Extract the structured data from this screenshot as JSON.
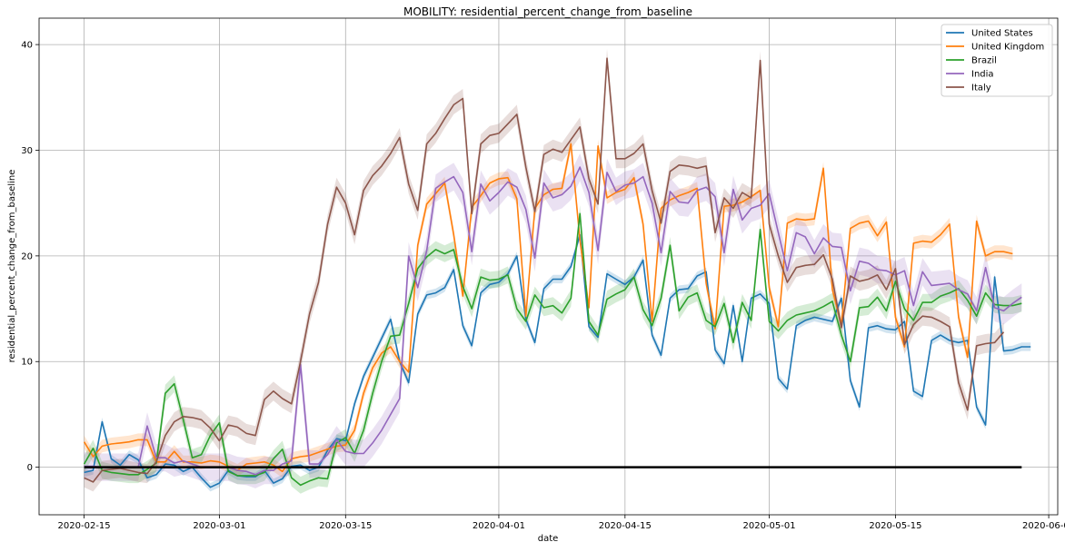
{
  "chart_data": {
    "type": "line",
    "title": "MOBILITY: residential_percent_change_from_baseline",
    "xlabel": "date",
    "ylabel": "residential_percent_change_from_baseline",
    "xlim": [
      "2020-02-10",
      "2020-06-02"
    ],
    "ylim": [
      -4.5,
      42.5
    ],
    "x_ticks": [
      "2020-02-15",
      "2020-03-01",
      "2020-03-15",
      "2020-04-01",
      "2020-04-15",
      "2020-05-01",
      "2020-05-15",
      "2020-06-01"
    ],
    "y_ticks": [
      0,
      10,
      20,
      30,
      40
    ],
    "grid": true,
    "legend_position": "top-right",
    "x_start": "2020-02-15",
    "x_end": "2020-05-29",
    "confidence_band": true,
    "baseline": {
      "value": 0,
      "color": "#000000"
    },
    "series": [
      {
        "name": "United States",
        "color": "#1f77b4",
        "band": 0.4,
        "values": [
          -0.5,
          -0.3,
          4.3,
          0.8,
          0.2,
          1.2,
          0.7,
          -1.0,
          -0.7,
          0.3,
          0.2,
          -0.4,
          0,
          -1.0,
          -1.9,
          -1.5,
          -0.3,
          -0.8,
          -0.9,
          -0.9,
          -0.3,
          -1.5,
          -1.1,
          0.1,
          0.2,
          -0.3,
          0,
          1.6,
          2.7,
          2.5,
          6.0,
          8.6,
          10.4,
          12.2,
          14.0,
          10.0,
          8.0,
          14.5,
          16.3,
          16.5,
          17.0,
          18.7,
          13.4,
          11.5,
          16.5,
          17.3,
          17.5,
          18.3,
          20.0,
          14.0,
          11.8,
          16.9,
          17.8,
          17.8,
          19.0,
          22.0,
          13.3,
          12.3,
          18.3,
          17.8,
          17.3,
          18.0,
          19.6,
          12.5,
          10.6,
          16.0,
          16.8,
          16.9,
          18.1,
          18.5,
          11.1,
          9.8,
          15.3,
          10.0,
          16.0,
          16.4,
          15.5,
          8.4,
          7.4,
          13.4,
          13.9,
          14.2,
          14.0,
          13.8,
          16.0,
          8.2,
          5.7,
          13.2,
          13.4,
          13.1,
          13.0,
          13.8,
          7.2,
          6.7,
          12.0,
          12.5,
          12.0,
          11.8,
          12.0,
          5.7,
          4.0,
          18.0,
          11.0,
          11.1,
          11.4,
          11.4
        ]
      },
      {
        "name": "United Kingdom",
        "color": "#ff7f0e",
        "band": 0.6,
        "values": [
          2.4,
          1.0,
          2.0,
          2.2,
          2.3,
          2.4,
          2.6,
          2.6,
          0.5,
          0.5,
          1.5,
          0.5,
          0.5,
          0.4,
          0.6,
          0.5,
          0.1,
          -0.3,
          0.3,
          0.4,
          0.5,
          0.2,
          -0.4,
          0.8,
          1.0,
          1.1,
          1.4,
          1.7,
          2.0,
          2.1,
          3.5,
          7.0,
          9.4,
          10.8,
          11.4,
          10.0,
          9.0,
          21.0,
          24.9,
          25.9,
          26.9,
          22.0,
          16.2,
          24.6,
          25.7,
          26.9,
          27.3,
          27.4,
          25.4,
          14.3,
          24.5,
          25.8,
          26.3,
          26.4,
          30.6,
          21.5,
          15.1,
          30.4,
          25.5,
          26.0,
          26.3,
          27.4,
          23.0,
          13.8,
          24.5,
          25.3,
          25.7,
          26.0,
          26.4,
          17.4,
          13.1,
          24.7,
          24.8,
          25.1,
          25.6,
          26.2,
          17.0,
          13.3,
          23.1,
          23.5,
          23.4,
          23.5,
          28.3,
          16.8,
          13.5,
          22.6,
          23.1,
          23.3,
          21.9,
          23.2,
          14.2,
          11.4,
          21.2,
          21.4,
          21.3,
          22.0,
          23.0,
          14.2,
          10.4,
          23.3,
          20.0,
          20.4,
          20.4,
          20.2
        ]
      },
      {
        "name": "Brazil",
        "color": "#2ca02c",
        "band": 0.8,
        "values": [
          0.3,
          1.8,
          -0.3,
          -0.5,
          -0.6,
          -0.7,
          -0.7,
          -0.2,
          0.4,
          7.0,
          7.9,
          4.5,
          0.9,
          1.2,
          3.0,
          4.2,
          -0.4,
          -0.8,
          -0.8,
          -0.8,
          -0.5,
          0.8,
          1.7,
          -1.0,
          -1.7,
          -1.3,
          -1.0,
          -1.1,
          2.3,
          2.8,
          1.3,
          3.5,
          7.0,
          10.0,
          12.4,
          12.5,
          15.5,
          18.8,
          19.9,
          20.6,
          20.2,
          20.6,
          17.1,
          15.0,
          18.0,
          17.7,
          17.8,
          18.2,
          15.0,
          13.8,
          16.3,
          15.1,
          15.3,
          14.6,
          16.0,
          24.0,
          13.8,
          12.5,
          15.9,
          16.4,
          16.8,
          18.0,
          14.9,
          13.4,
          16.0,
          21.0,
          14.8,
          16.1,
          16.5,
          13.9,
          13.3,
          15.5,
          11.8,
          15.6,
          13.9,
          22.5,
          13.8,
          12.9,
          13.9,
          14.4,
          14.6,
          14.8,
          15.2,
          15.7,
          12.5,
          10.0,
          15.1,
          15.2,
          16.1,
          14.8,
          17.6,
          15.0,
          13.9,
          15.6,
          15.6,
          16.2,
          16.5,
          16.9,
          15.8,
          14.3,
          16.5,
          15.4,
          15.3,
          15.3,
          15.5
        ]
      },
      {
        "name": "India",
        "color": "#9467bd",
        "band": 1.3,
        "values": [
          0.1,
          0.1,
          0,
          0,
          0,
          0,
          0,
          3.9,
          0.9,
          0.9,
          0.4,
          0.6,
          0.3,
          0,
          0,
          0,
          0,
          -0.3,
          -0.4,
          -0.7,
          -0.3,
          -0.3,
          0.3,
          0.6,
          9.7,
          0.3,
          0.3,
          1.2,
          2.6,
          1.5,
          1.3,
          1.3,
          2.3,
          3.5,
          5.0,
          6.5,
          20.0,
          17.0,
          20.5,
          26.4,
          27.0,
          27.5,
          26.0,
          20.4,
          26.8,
          25.2,
          26.0,
          27.0,
          26.5,
          24.4,
          19.8,
          26.9,
          25.5,
          25.8,
          26.6,
          28.4,
          26.0,
          20.5,
          27.9,
          26.1,
          26.7,
          26.9,
          27.5,
          25.0,
          20.3,
          26.1,
          25.1,
          25.0,
          26.2,
          26.5,
          25.6,
          20.3,
          26.3,
          23.4,
          24.5,
          24.8,
          25.9,
          22.2,
          18.6,
          22.2,
          21.8,
          20.2,
          21.7,
          20.9,
          20.8,
          16.7,
          19.5,
          19.3,
          18.7,
          18.6,
          18.2,
          18.6,
          15.3,
          18.5,
          17.2,
          17.3,
          17.4,
          16.8,
          16.4,
          14.8,
          18.9,
          15.1,
          14.8,
          15.5,
          16.1
        ]
      },
      {
        "name": "Italy",
        "color": "#8c564b",
        "band": 0.9,
        "values": [
          -1.0,
          -1.4,
          -0.3,
          -0.2,
          -0.1,
          -0.3,
          -0.5,
          -0.6,
          0.5,
          3.0,
          4.3,
          4.8,
          4.7,
          4.5,
          3.7,
          2.5,
          4.0,
          3.8,
          3.2,
          3.0,
          6.4,
          7.2,
          6.5,
          6.0,
          10.0,
          14.5,
          17.5,
          23.0,
          26.5,
          25.0,
          22.0,
          26.2,
          27.6,
          28.5,
          29.7,
          31.2,
          26.8,
          24.3,
          30.6,
          31.6,
          33.0,
          34.3,
          34.9,
          24.0,
          30.6,
          31.4,
          31.6,
          32.5,
          33.4,
          28.4,
          24.2,
          29.6,
          30.1,
          29.8,
          31.0,
          32.2,
          27.3,
          24.9,
          38.7,
          29.2,
          29.2,
          29.7,
          30.6,
          26.2,
          23.1,
          28.0,
          28.6,
          28.5,
          28.3,
          28.5,
          22.2,
          25.5,
          24.5,
          26.0,
          25.5,
          38.5,
          23.0,
          20.0,
          17.5,
          18.9,
          19.1,
          19.2,
          20.1,
          17.8,
          13.2,
          18.1,
          17.6,
          17.8,
          18.2,
          16.8,
          18.8,
          11.6,
          13.5,
          14.3,
          14.2,
          13.8,
          13.3,
          8.0,
          5.4,
          11.5,
          11.7,
          11.8,
          12.8
        ]
      }
    ]
  }
}
